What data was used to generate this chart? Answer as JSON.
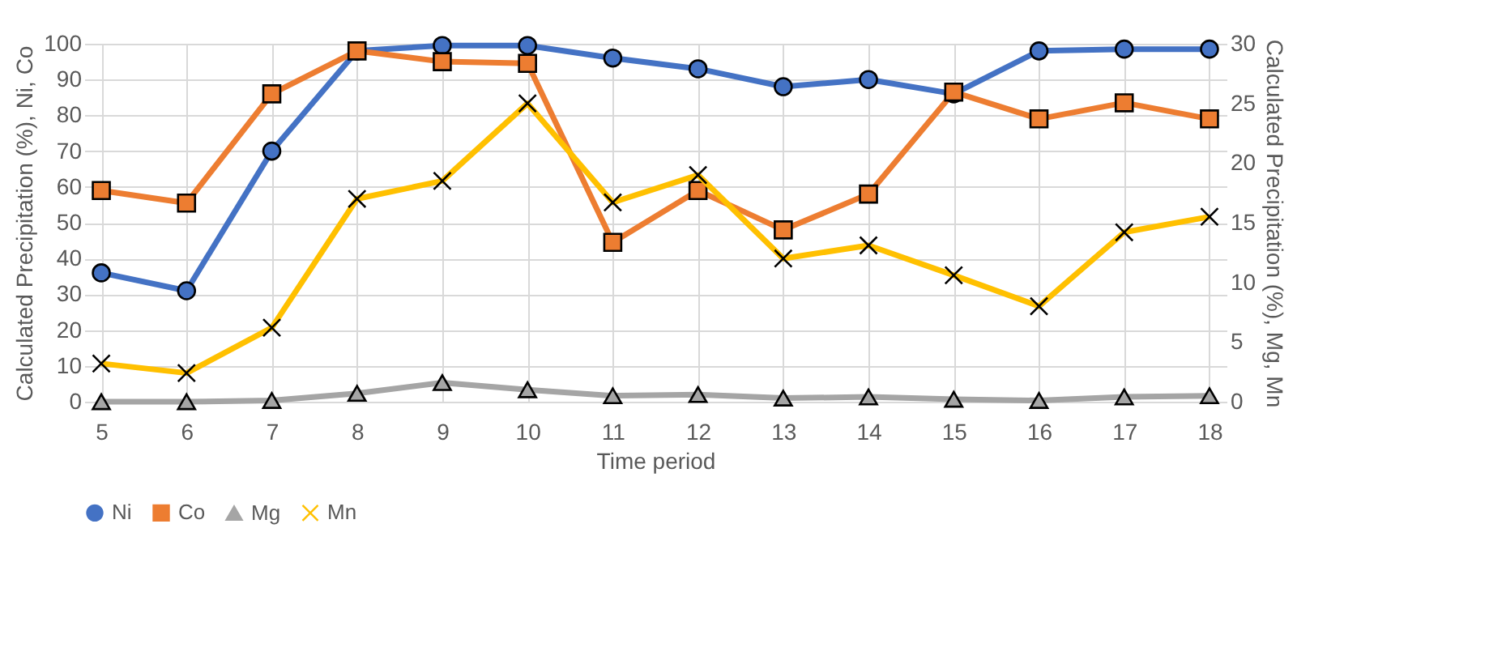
{
  "chart_data": {
    "type": "line",
    "xlabel": "Time period",
    "ylabel": "Calculated Precipitation (%), Ni, Co",
    "y2label": "Calculated Precipitation (%), Mg, Mn",
    "categories": [
      "5",
      "6",
      "7",
      "8",
      "9",
      "10",
      "11",
      "12",
      "13",
      "14",
      "15",
      "16",
      "17",
      "18"
    ],
    "ylim": [
      0,
      100
    ],
    "yticks": [
      0,
      10,
      20,
      30,
      40,
      50,
      60,
      70,
      80,
      90,
      100
    ],
    "y2lim": [
      0,
      30
    ],
    "y2ticks": [
      0,
      5,
      10,
      15,
      20,
      25,
      30
    ],
    "grid": true,
    "legend": "bottom",
    "series": [
      {
        "name": "Ni",
        "color": "#4472c4",
        "marker": "circle",
        "values": [
          36,
          31,
          70,
          98,
          99.5,
          99.5,
          96,
          93,
          88,
          90,
          86,
          98,
          98.5,
          98.5
        ]
      },
      {
        "name": "Co",
        "color": "#ed7d31",
        "marker": "square",
        "values": [
          59,
          55.5,
          86,
          98,
          95,
          94.5,
          44.5,
          59,
          48,
          58,
          86.5,
          79,
          83.5,
          79
        ]
      },
      {
        "name": "Mg",
        "color": "#a5a5a5",
        "marker": "triangle",
        "axis": "y2",
        "values": [
          0,
          0,
          0.1,
          0.7,
          1.6,
          1,
          0.5,
          0.6,
          0.3,
          0.4,
          0.2,
          0.1,
          0.4,
          0.5
        ]
      },
      {
        "name": "Mn",
        "color": "#ffc000",
        "marker": "cross",
        "axis": "y2",
        "values": [
          3.2,
          2.4,
          6.2,
          17,
          18.5,
          25,
          16.7,
          19,
          12,
          13.1,
          10.6,
          8,
          14.2,
          15.5
        ]
      }
    ]
  }
}
